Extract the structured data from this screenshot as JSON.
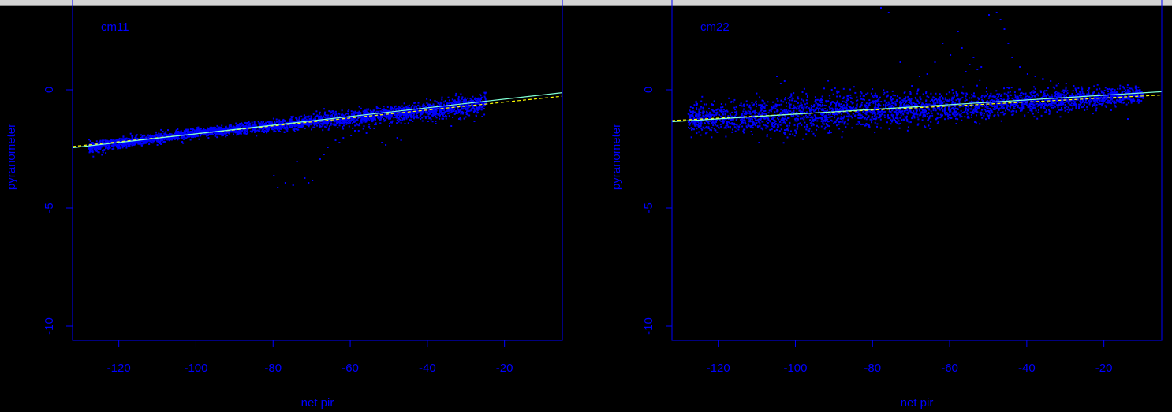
{
  "colors": {
    "background": "#000000",
    "axis": "#0000ff",
    "points": "#0000ff",
    "fit_line": "#7fffd4",
    "ref_line": "#ffff00",
    "bar": "#d4d4d4"
  },
  "chart_data": [
    {
      "type": "scatter",
      "panel_label": "cm11",
      "xlabel": "net pir",
      "ylabel": "pyranometer",
      "xlim": [
        -132,
        -5
      ],
      "ylim": [
        -10.6,
        3.6
      ],
      "x_ticks": [
        -120,
        -100,
        -80,
        -60,
        -40,
        -20
      ],
      "y_ticks": [
        0,
        -5,
        -10
      ],
      "x_tick_labels": [
        "-120",
        "-100",
        "-80",
        "-60",
        "-40",
        "-20"
      ],
      "y_tick_labels": [
        "0",
        "-5",
        "-10"
      ],
      "fit_line": {
        "x": [
          -132,
          -5
        ],
        "y": [
          -2.45,
          -0.12
        ]
      },
      "reference_line": {
        "x": [
          -132,
          -5
        ],
        "y": [
          -2.4,
          -0.27
        ]
      },
      "cloud": {
        "x": [
          -128,
          -100,
          -80,
          -60,
          -40,
          -25
        ],
        "y": [
          -2.4,
          -1.8,
          -1.5,
          -1.15,
          -0.85,
          -0.55
        ],
        "spread": [
          0.12,
          0.1,
          0.12,
          0.15,
          0.18,
          0.22
        ]
      },
      "outliers": {
        "x": [
          -80,
          -79,
          -77,
          -74,
          -72,
          -70,
          -68,
          -66,
          -64,
          -62,
          -60,
          -58,
          -56,
          -54,
          -52,
          -50,
          -48,
          -46,
          -44,
          -42,
          -40,
          -38,
          -36,
          -34,
          -32,
          -30,
          -28,
          -26,
          -75,
          -71,
          -67,
          -63,
          -59,
          -55,
          -51,
          -47
        ],
        "y": [
          -3.6,
          -4.1,
          -3.9,
          -3.0,
          -3.7,
          -3.8,
          -2.9,
          -2.4,
          -2.1,
          -2.0,
          -1.9,
          -1.7,
          -1.8,
          -1.6,
          -2.2,
          -1.5,
          -2.0,
          -1.4,
          -1.3,
          -1.2,
          -1.3,
          -1.4,
          -1.1,
          -1.5,
          -1.2,
          -1.0,
          -1.3,
          -1.1,
          -4.0,
          -3.9,
          -2.7,
          -2.2,
          -1.7,
          -1.6,
          -2.3,
          -2.1
        ]
      }
    },
    {
      "type": "scatter",
      "panel_label": "cm22",
      "xlabel": "net pir",
      "ylabel": "pyranometer",
      "xlim": [
        -132,
        -5
      ],
      "ylim": [
        -10.6,
        3.6
      ],
      "x_ticks": [
        -120,
        -100,
        -80,
        -60,
        -40,
        -20
      ],
      "y_ticks": [
        0,
        -5,
        -10
      ],
      "x_tick_labels": [
        "-120",
        "-100",
        "-80",
        "-60",
        "-40",
        "-20"
      ],
      "y_tick_labels": [
        "0",
        "-5",
        "-10"
      ],
      "fit_line": {
        "x": [
          -132,
          -5
        ],
        "y": [
          -1.35,
          -0.08
        ]
      },
      "reference_line": {
        "x": [
          -132,
          -5
        ],
        "y": [
          -1.3,
          -0.22
        ]
      },
      "cloud": {
        "x": [
          -128,
          -110,
          -100,
          -80,
          -60,
          -40,
          -20,
          -10
        ],
        "y": [
          -1.2,
          -1.1,
          -1.0,
          -0.85,
          -0.7,
          -0.5,
          -0.3,
          -0.15
        ],
        "spread": [
          0.3,
          0.35,
          0.45,
          0.35,
          0.3,
          0.25,
          0.2,
          0.15
        ]
      },
      "outliers": {
        "x": [
          -105,
          -104,
          -103,
          -78,
          -76,
          -73,
          -64,
          -62,
          -60,
          -58,
          -56,
          -54,
          -52,
          -50,
          -48,
          -47,
          -46,
          -45,
          -44,
          -42,
          -40,
          -38,
          -36,
          -34,
          -32,
          -30,
          -28,
          -26,
          -24,
          -22,
          -20,
          -18,
          -16,
          -14,
          -66,
          -70,
          -68,
          -57,
          -55,
          -53
        ],
        "y": [
          0.6,
          0.3,
          0.4,
          3.5,
          3.3,
          1.2,
          1.2,
          2.0,
          1.5,
          2.5,
          0.8,
          1.4,
          1.0,
          3.2,
          3.3,
          3.0,
          2.6,
          2.0,
          1.4,
          1.0,
          0.7,
          0.6,
          0.5,
          0.4,
          0.3,
          0.3,
          0.2,
          0.15,
          0.1,
          0.05,
          0.0,
          -0.1,
          -0.5,
          -1.2,
          0.7,
          0.2,
          0.6,
          1.8,
          1.1,
          0.9
        ]
      }
    }
  ]
}
